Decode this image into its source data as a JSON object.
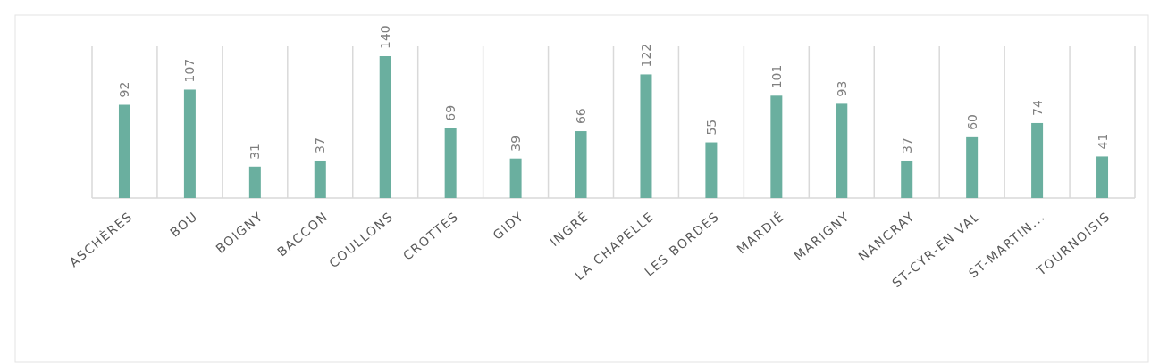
{
  "chart_data": {
    "type": "bar",
    "categories": [
      "ASCHÈRES",
      "BOU",
      "BOIGNY",
      "BACCON",
      "COULLONS",
      "CROTTES",
      "GIDY",
      "INGRÉ",
      "LA CHAPELLE",
      "LES BORDES",
      "MARDIÉ",
      "MARIGNY",
      "NANCRAY",
      "ST-CYR-EN VAL",
      "ST-MARTIN...",
      "TOURNOISIS"
    ],
    "values": [
      92,
      107,
      31,
      37,
      140,
      69,
      39,
      66,
      122,
      55,
      101,
      93,
      37,
      60,
      74,
      41
    ],
    "color": "#6aaf9f",
    "data_labels": true,
    "grid": "x"
  }
}
